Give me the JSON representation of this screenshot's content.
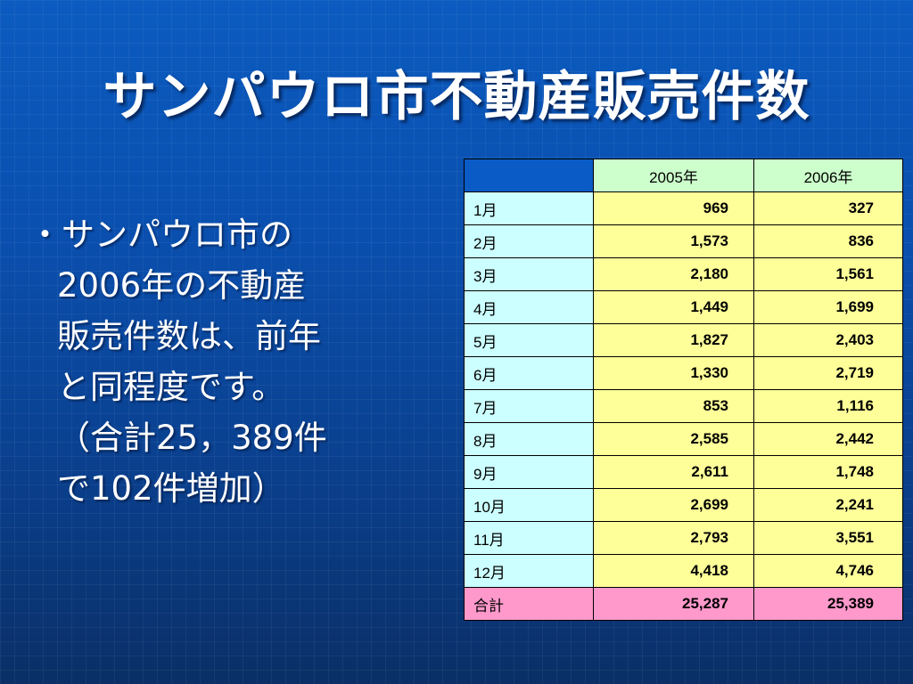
{
  "slide": {
    "title": "サンパウロ市不動産販売件数",
    "bullet_lines": [
      "・サンパウロ市の",
      "2006年の不動産",
      "販売件数は、前年",
      "と同程度です。",
      "（合計25，389件",
      "で102件増加）"
    ]
  },
  "table": {
    "headers": [
      "",
      "2005年",
      "2006年"
    ],
    "rows": [
      {
        "label": "1月",
        "y2005": "969",
        "y2006": "327"
      },
      {
        "label": "2月",
        "y2005": "1,573",
        "y2006": "836"
      },
      {
        "label": "3月",
        "y2005": "2,180",
        "y2006": "1,561"
      },
      {
        "label": "4月",
        "y2005": "1,449",
        "y2006": "1,699"
      },
      {
        "label": "5月",
        "y2005": "1,827",
        "y2006": "2,403"
      },
      {
        "label": "6月",
        "y2005": "1,330",
        "y2006": "2,719"
      },
      {
        "label": "7月",
        "y2005": "853",
        "y2006": "1,116"
      },
      {
        "label": "8月",
        "y2005": "2,585",
        "y2006": "2,442"
      },
      {
        "label": "9月",
        "y2005": "2,611",
        "y2006": "1,748"
      },
      {
        "label": "10月",
        "y2005": "2,699",
        "y2006": "2,241"
      },
      {
        "label": "11月",
        "y2005": "2,793",
        "y2006": "3,551"
      },
      {
        "label": "12月",
        "y2005": "4,418",
        "y2006": "4,746"
      },
      {
        "label": "合計",
        "y2005": "25,287",
        "y2006": "25,389"
      }
    ]
  },
  "colors": {
    "background": "#0a4fae",
    "header_cell": "#ccffcc",
    "label_cell": "#ccffff",
    "value_cell": "#ffff99",
    "total_row": "#ff99cc"
  }
}
